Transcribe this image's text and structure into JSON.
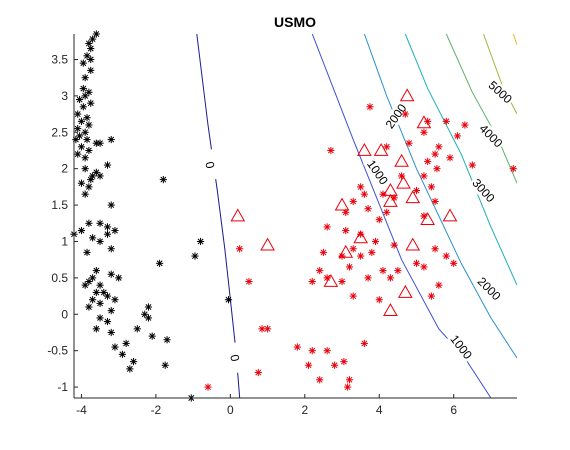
{
  "chart_data": {
    "type": "scatter",
    "title": "USMO",
    "xlabel": "",
    "ylabel": "",
    "xlim": [
      -4.2,
      7.7
    ],
    "ylim": [
      -1.15,
      3.85
    ],
    "xticks": [
      -4,
      -2,
      0,
      2,
      4,
      6
    ],
    "yticks": [
      -1,
      -0.5,
      0,
      0.5,
      1,
      1.5,
      2,
      2.5,
      3,
      3.5
    ],
    "grid": false,
    "legend": "none",
    "colors": {
      "class_neg": "#000000",
      "class_pos": "#e8000b",
      "support_vectors": "#e8000b",
      "axes": "#262626"
    },
    "series": [
      {
        "marker": "asterisk",
        "color": "#000000",
        "points": [
          [
            -3.6,
            3.85
          ],
          [
            -3.7,
            3.78
          ],
          [
            -3.8,
            3.72
          ],
          [
            -3.75,
            3.65
          ],
          [
            -3.85,
            3.55
          ],
          [
            -3.75,
            3.5
          ],
          [
            -3.95,
            3.45
          ],
          [
            -3.75,
            3.35
          ],
          [
            -3.9,
            3.25
          ],
          [
            -3.95,
            3.1
          ],
          [
            -3.8,
            3.05
          ],
          [
            -3.9,
            3.0
          ],
          [
            -4.05,
            2.95
          ],
          [
            -3.75,
            2.9
          ],
          [
            -3.95,
            2.85
          ],
          [
            -4.1,
            2.75
          ],
          [
            -3.85,
            2.7
          ],
          [
            -4.0,
            2.65
          ],
          [
            -3.8,
            2.6
          ],
          [
            -4.1,
            2.55
          ],
          [
            -3.9,
            2.5
          ],
          [
            -4.05,
            2.45
          ],
          [
            -4.15,
            2.4
          ],
          [
            -3.85,
            2.4
          ],
          [
            -3.6,
            2.35
          ],
          [
            -4.0,
            2.3
          ],
          [
            -3.8,
            2.25
          ],
          [
            -4.1,
            2.2
          ],
          [
            -3.9,
            2.15
          ],
          [
            -3.2,
            2.4
          ],
          [
            -3.5,
            2.35
          ],
          [
            -3.3,
            2.05
          ],
          [
            -3.9,
            2.0
          ],
          [
            -3.6,
            1.95
          ],
          [
            -3.75,
            1.85
          ],
          [
            -4.0,
            1.8
          ],
          [
            -3.8,
            1.75
          ],
          [
            -3.9,
            1.65
          ],
          [
            -3.5,
            1.9
          ],
          [
            -3.7,
            1.9
          ],
          [
            -3.2,
            1.5
          ],
          [
            -1.8,
            1.85
          ],
          [
            -3.3,
            1.2
          ],
          [
            -3.5,
            1.25
          ],
          [
            -3.8,
            1.25
          ],
          [
            -4.0,
            1.15
          ],
          [
            -3.7,
            1.05
          ],
          [
            -4.2,
            1.1
          ],
          [
            -3.1,
            1.15
          ],
          [
            -3.3,
            1.1
          ],
          [
            -3.5,
            1.0
          ],
          [
            -3.2,
            0.9
          ],
          [
            -3.85,
            0.85
          ],
          [
            -1.9,
            0.7
          ],
          [
            -0.8,
            1.0
          ],
          [
            -0.95,
            0.8
          ],
          [
            -3.6,
            0.6
          ],
          [
            -3.7,
            0.5
          ],
          [
            -3.8,
            0.45
          ],
          [
            -3.5,
            0.4
          ],
          [
            -3.9,
            0.4
          ],
          [
            -3.2,
            0.55
          ],
          [
            -3.0,
            0.5
          ],
          [
            -3.6,
            0.3
          ],
          [
            -3.4,
            0.3
          ],
          [
            -3.7,
            0.2
          ],
          [
            -3.3,
            0.25
          ],
          [
            -3.1,
            0.2
          ],
          [
            -3.5,
            0.15
          ],
          [
            -3.8,
            0.1
          ],
          [
            -2.2,
            0.1
          ],
          [
            -3.2,
            0.05
          ],
          [
            -2.3,
            0.0
          ],
          [
            -2.2,
            -0.05
          ],
          [
            -3.5,
            -0.05
          ],
          [
            -3.3,
            -0.1
          ],
          [
            -3.6,
            -0.2
          ],
          [
            -2.5,
            -0.2
          ],
          [
            -3.2,
            -0.25
          ],
          [
            -2.1,
            -0.3
          ],
          [
            -2.8,
            -0.4
          ],
          [
            -3.1,
            -0.45
          ],
          [
            -1.7,
            -0.35
          ],
          [
            -2.9,
            -0.55
          ],
          [
            -2.6,
            -0.65
          ],
          [
            -2.7,
            -0.75
          ],
          [
            -1.75,
            -0.7
          ],
          [
            -1.05,
            -1.15
          ],
          [
            -0.05,
            0.2
          ]
        ]
      },
      {
        "marker": "asterisk",
        "color": "#e8000b",
        "points": [
          [
            3.75,
            2.85
          ],
          [
            4.7,
            2.75
          ],
          [
            5.3,
            2.65
          ],
          [
            5.8,
            2.65
          ],
          [
            6.3,
            2.6
          ],
          [
            6.1,
            2.45
          ],
          [
            5.2,
            2.5
          ],
          [
            5.6,
            2.3
          ],
          [
            5.5,
            2.2
          ],
          [
            4.2,
            2.3
          ],
          [
            4.8,
            2.35
          ],
          [
            5.3,
            2.1
          ],
          [
            5.9,
            2.15
          ],
          [
            6.5,
            2.05
          ],
          [
            7.6,
            2.0
          ],
          [
            5.55,
            2.0
          ],
          [
            4.6,
            1.9
          ],
          [
            5.2,
            1.9
          ],
          [
            5.0,
            1.7
          ],
          [
            5.4,
            1.75
          ],
          [
            3.5,
            1.75
          ],
          [
            3.6,
            1.65
          ],
          [
            4.1,
            1.65
          ],
          [
            4.4,
            1.6
          ],
          [
            5.5,
            1.55
          ],
          [
            2.7,
            2.25
          ],
          [
            3.3,
            1.55
          ],
          [
            3.7,
            1.45
          ],
          [
            4.2,
            1.4
          ],
          [
            4.0,
            1.3
          ],
          [
            5.2,
            1.35
          ],
          [
            3.1,
            1.4
          ],
          [
            2.6,
            1.2
          ],
          [
            3.1,
            1.15
          ],
          [
            3.5,
            1.1
          ],
          [
            3.9,
            1.0
          ],
          [
            3.8,
            0.85
          ],
          [
            4.4,
            0.95
          ],
          [
            5.5,
            0.9
          ],
          [
            6.0,
            0.7
          ],
          [
            3.3,
            0.9
          ],
          [
            3.5,
            0.8
          ],
          [
            2.5,
            0.85
          ],
          [
            3.0,
            0.8
          ],
          [
            3.2,
            0.65
          ],
          [
            4.1,
            0.6
          ],
          [
            4.5,
            0.6
          ],
          [
            3.0,
            0.45
          ],
          [
            3.7,
            0.5
          ],
          [
            4.3,
            0.5
          ],
          [
            2.4,
            0.6
          ],
          [
            2.2,
            0.45
          ],
          [
            2.6,
            0.5
          ],
          [
            5.0,
            0.7
          ],
          [
            5.2,
            0.65
          ],
          [
            5.4,
            0.25
          ],
          [
            5.6,
            0.4
          ],
          [
            5.8,
            0.8
          ],
          [
            3.3,
            0.25
          ],
          [
            4.0,
            0.2
          ],
          [
            0.25,
            0.9
          ],
          [
            0.5,
            0.45
          ],
          [
            0.85,
            -0.2
          ],
          [
            1.0,
            -0.2
          ],
          [
            0.75,
            -0.8
          ],
          [
            1.8,
            -0.45
          ],
          [
            2.2,
            -0.5
          ],
          [
            2.6,
            -0.5
          ],
          [
            2.8,
            -0.7
          ],
          [
            2.4,
            -0.9
          ],
          [
            3.2,
            -0.9
          ],
          [
            3.15,
            -1.0
          ],
          [
            3.05,
            -0.65
          ],
          [
            2.1,
            -0.7
          ],
          [
            3.6,
            -0.4
          ],
          [
            -0.6,
            -1.0
          ]
        ]
      },
      {
        "marker": "triangle",
        "color": "#e8000b",
        "points": [
          [
            4.75,
            3.0
          ],
          [
            5.2,
            2.63
          ],
          [
            3.6,
            2.25
          ],
          [
            4.05,
            2.25
          ],
          [
            4.6,
            2.1
          ],
          [
            4.3,
            1.7
          ],
          [
            4.65,
            1.8
          ],
          [
            4.9,
            1.6
          ],
          [
            4.3,
            1.55
          ],
          [
            3.0,
            1.5
          ],
          [
            5.9,
            1.35
          ],
          [
            5.3,
            1.3
          ],
          [
            0.2,
            1.35
          ],
          [
            1.0,
            0.95
          ],
          [
            3.5,
            1.05
          ],
          [
            3.1,
            0.85
          ],
          [
            4.9,
            0.95
          ],
          [
            2.7,
            0.45
          ],
          [
            4.7,
            0.3
          ],
          [
            4.3,
            0.05
          ]
        ]
      }
    ],
    "contours": [
      {
        "level": 0,
        "label": "0",
        "points": [
          [
            -0.9,
            3.85
          ],
          [
            -0.6,
            2.6
          ],
          [
            -0.35,
            1.7
          ],
          [
            -0.15,
            0.9
          ],
          [
            0.0,
            0.2
          ],
          [
            0.15,
            -0.5
          ],
          [
            0.25,
            -1.15
          ]
        ]
      },
      {
        "level": 1000,
        "label": "1000",
        "points": [
          [
            2.2,
            3.85
          ],
          [
            3.3,
            2.4
          ],
          [
            4.6,
            0.75
          ],
          [
            5.6,
            -0.2
          ],
          [
            6.3,
            -0.6
          ],
          [
            7.0,
            -1.15
          ]
        ]
      },
      {
        "level": 2000,
        "label": "2000",
        "points": [
          [
            3.6,
            3.85
          ],
          [
            4.2,
            3.0
          ],
          [
            5.0,
            2.0
          ],
          [
            6.2,
            0.7
          ],
          [
            7.0,
            -0.05
          ],
          [
            7.7,
            -0.6
          ]
        ]
      },
      {
        "level": 3000,
        "label": "3000",
        "points": [
          [
            4.7,
            3.85
          ],
          [
            5.3,
            3.1
          ],
          [
            6.2,
            2.2
          ],
          [
            7.0,
            1.2
          ],
          [
            7.7,
            0.4
          ]
        ]
      },
      {
        "level": 4000,
        "label": "4000",
        "points": [
          [
            5.8,
            3.85
          ],
          [
            6.5,
            3.05
          ],
          [
            7.2,
            2.4
          ],
          [
            7.7,
            1.8
          ]
        ]
      },
      {
        "level": 5000,
        "label": "5000",
        "points": [
          [
            6.8,
            3.85
          ],
          [
            7.3,
            3.15
          ],
          [
            7.7,
            2.75
          ]
        ]
      },
      {
        "level": 6000,
        "label": "",
        "points": [
          [
            7.6,
            3.85
          ],
          [
            7.7,
            3.7
          ]
        ]
      }
    ]
  }
}
